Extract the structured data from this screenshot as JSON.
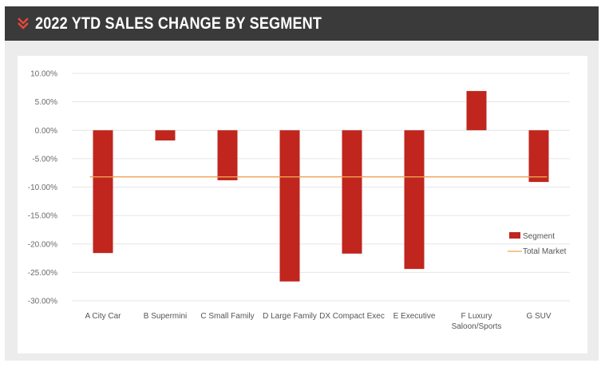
{
  "header": {
    "title": "2022 YTD SALES CHANGE BY SEGMENT",
    "icon": "double-chevron-down-icon",
    "accent_color": "#e8473a",
    "background_color": "#3a3a3a"
  },
  "chart_data": {
    "type": "bar",
    "title": "",
    "xlabel": "",
    "ylabel": "",
    "categories": [
      [
        "A City Car"
      ],
      [
        "B Supermini"
      ],
      [
        "C Small Family"
      ],
      [
        "D Large Family"
      ],
      [
        "DX Compact Exec"
      ],
      [
        "E Executive"
      ],
      [
        "F Luxury",
        "Saloon/Sports"
      ],
      [
        "G SUV"
      ]
    ],
    "series": [
      {
        "name": "Segment",
        "type": "bar",
        "color": "#c0261d",
        "values": [
          -21.6,
          -1.8,
          -8.8,
          -26.6,
          -21.7,
          -24.4,
          6.9,
          -9.1
        ]
      },
      {
        "name": "Total Market",
        "type": "line",
        "color": "#f0a050",
        "value": -8.2
      }
    ],
    "ylim": [
      -30,
      10
    ],
    "yticks": [
      10,
      5,
      0,
      -5,
      -10,
      -15,
      -20,
      -25,
      -30
    ],
    "ytick_labels": [
      "10.00%",
      "5.00%",
      "0.00%",
      "-5.00%",
      "-10.00%",
      "-15.00%",
      "-20.00%",
      "-25.00%",
      "-30.00%"
    ],
    "grid": true,
    "legend": "right"
  }
}
